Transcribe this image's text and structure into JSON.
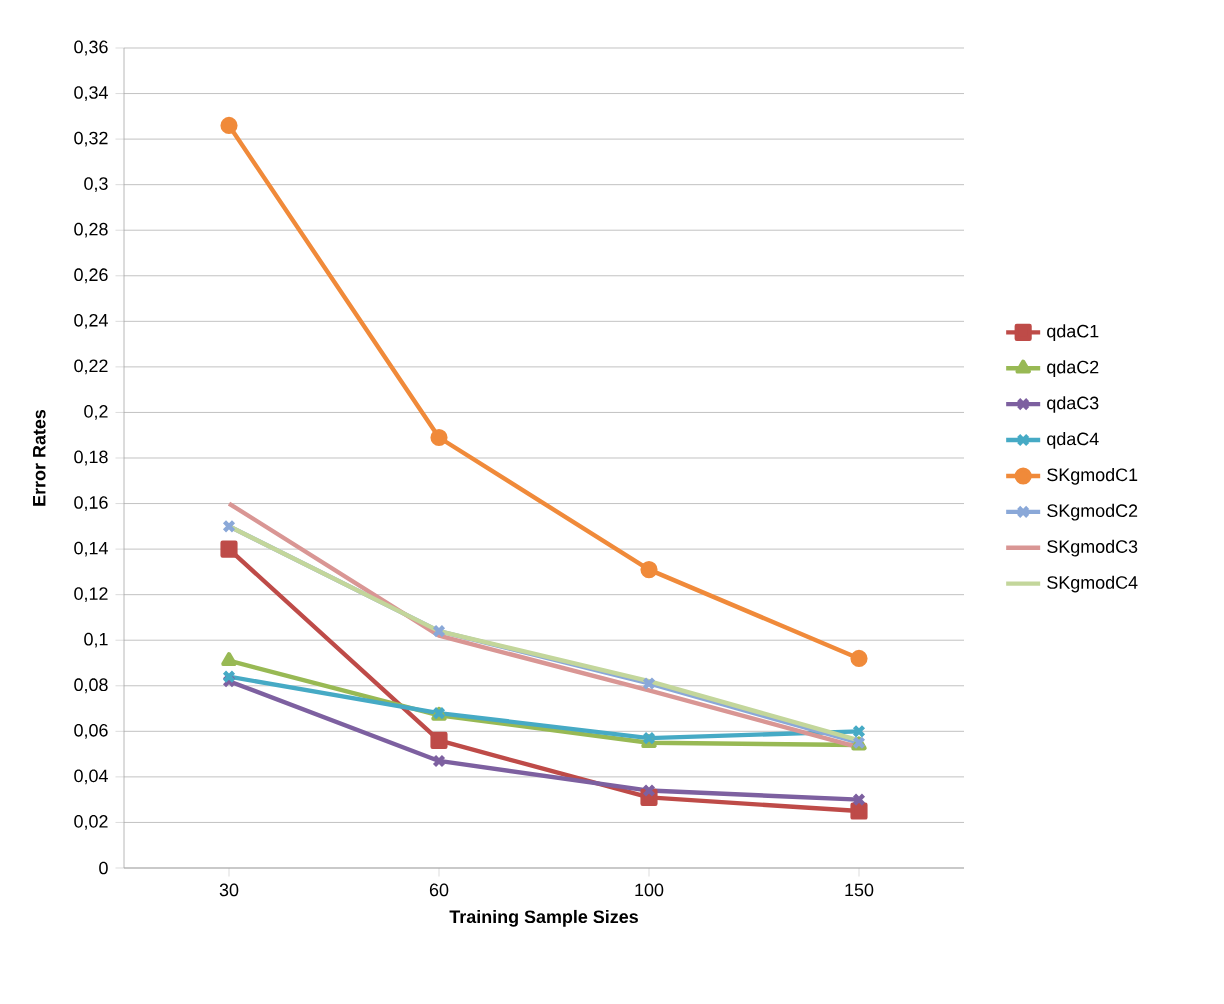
{
  "chart_data": {
    "type": "line",
    "xlabel": "Training Sample Sizes",
    "ylabel": "Error Rates",
    "categories": [
      "30",
      "60",
      "100",
      "150"
    ],
    "ylim": [
      0,
      0.36
    ],
    "yticks": [
      0,
      {
        "value": 0.02,
        "label": "0,02"
      },
      {
        "value": 0.04,
        "label": "0,04"
      },
      {
        "value": 0.06,
        "label": "0,06"
      },
      {
        "value": 0.08,
        "label": "0,08"
      },
      {
        "value": 0.1,
        "label": "0,1"
      },
      {
        "value": 0.12,
        "label": "0,12"
      },
      {
        "value": 0.14,
        "label": "0,14"
      },
      {
        "value": 0.16,
        "label": "0,16"
      },
      {
        "value": 0.18,
        "label": "0,18"
      },
      {
        "value": 0.2,
        "label": "0,2"
      },
      {
        "value": 0.22,
        "label": "0,22"
      },
      {
        "value": 0.24,
        "label": "0,24"
      },
      {
        "value": 0.26,
        "label": "0,26"
      },
      {
        "value": 0.28,
        "label": "0,28"
      },
      {
        "value": 0.3,
        "label": "0,3"
      },
      {
        "value": 0.32,
        "label": "0,32"
      },
      {
        "value": 0.34,
        "label": "0,34"
      },
      {
        "value": 0.36,
        "label": "0,36"
      }
    ],
    "grid": "y",
    "legend": "right",
    "line_style": "solid",
    "series": [
      {
        "name": "qdaC1",
        "color": "#be4b48",
        "marker": "square",
        "values": [
          0.14,
          0.056,
          0.031,
          0.025
        ]
      },
      {
        "name": "qdaC2",
        "color": "#98b954",
        "marker": "triangle",
        "values": [
          0.091,
          0.067,
          0.055,
          0.054
        ]
      },
      {
        "name": "qdaC3",
        "color": "#7d60a0",
        "marker": "cross",
        "values": [
          0.082,
          0.047,
          0.034,
          0.03
        ]
      },
      {
        "name": "qdaC4",
        "color": "#46aac5",
        "marker": "cross",
        "values": [
          0.084,
          0.068,
          0.057,
          0.06
        ]
      },
      {
        "name": "SKgmodC1",
        "color": "#f08a3a",
        "marker": "circle",
        "values": [
          0.326,
          0.189,
          0.131,
          0.092
        ]
      },
      {
        "name": "SKgmodC2",
        "color": "#8aa8d8",
        "marker": "cross",
        "values": [
          0.15,
          0.104,
          0.081,
          0.055
        ]
      },
      {
        "name": "SKgmodC3",
        "color": "#d99694",
        "marker": "none",
        "values": [
          0.16,
          0.102,
          0.078,
          0.053
        ]
      },
      {
        "name": "SKgmodC4",
        "color": "#c3d69b",
        "marker": "none",
        "values": [
          0.15,
          0.104,
          0.082,
          0.056
        ]
      }
    ]
  }
}
